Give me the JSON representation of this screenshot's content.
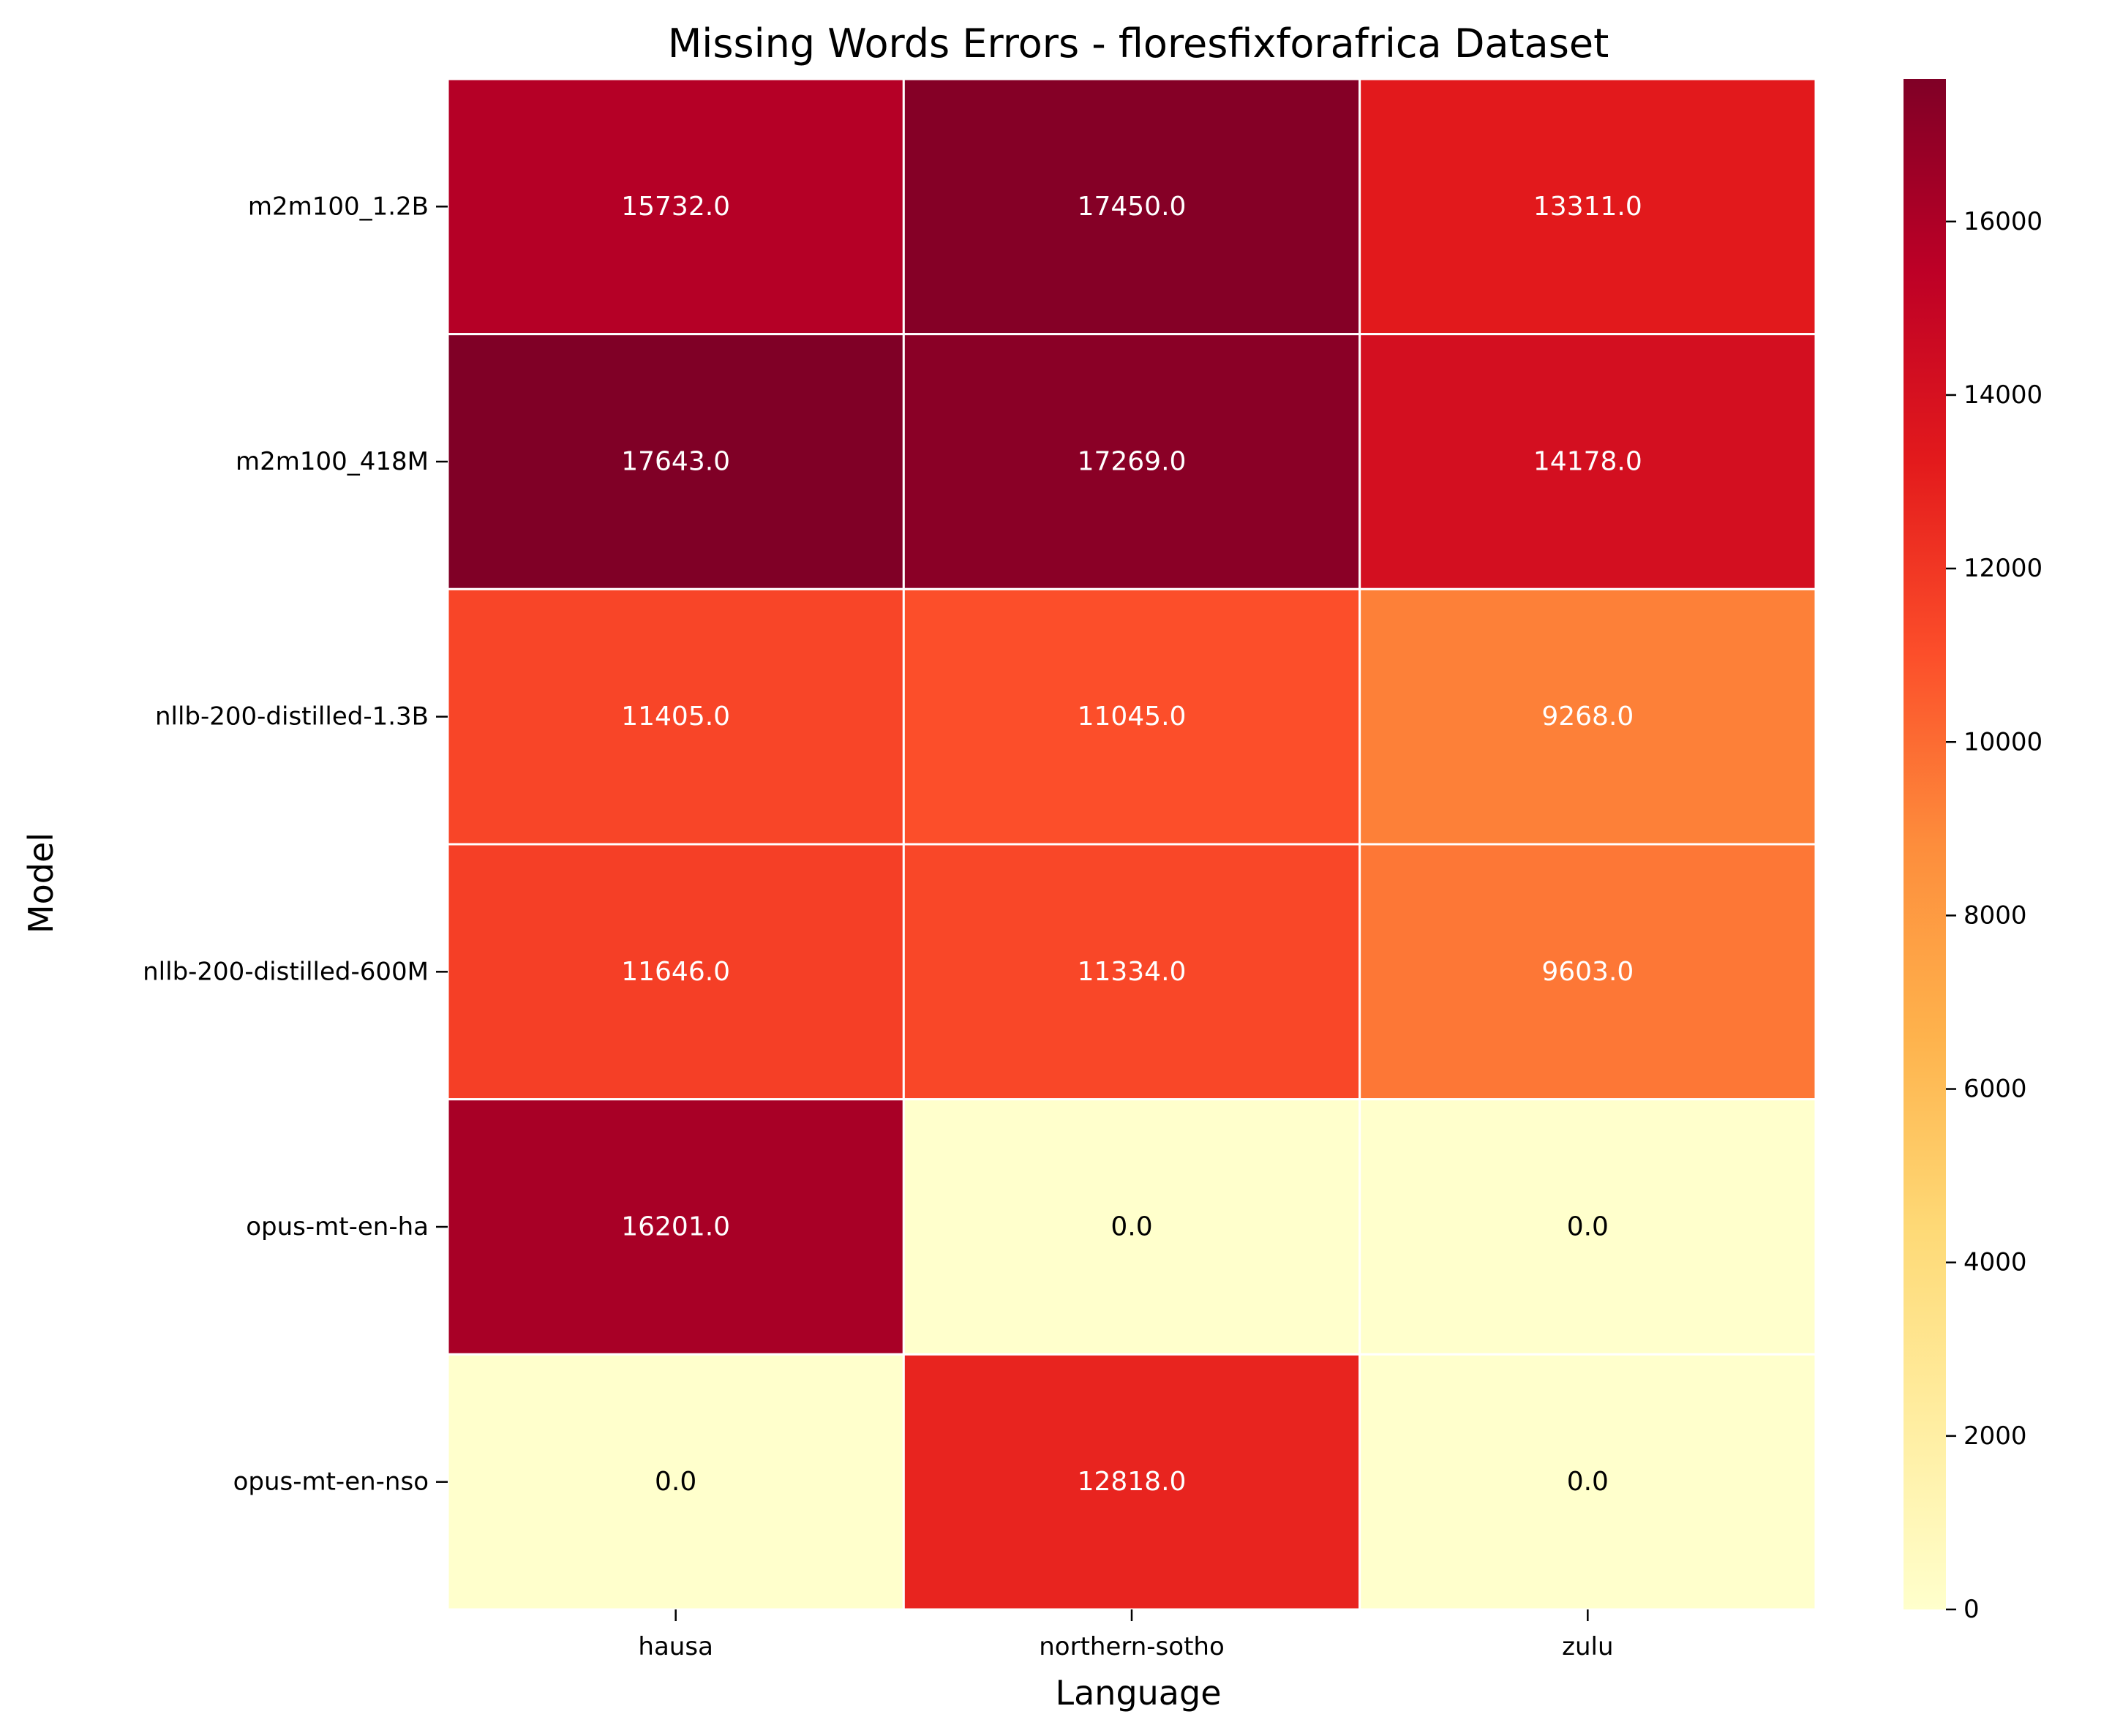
{
  "chart_data": {
    "type": "heatmap",
    "title": "Missing Words Errors - floresfixforafrica Dataset",
    "xlabel": "Language",
    "ylabel": "Model",
    "x_categories": [
      "hausa",
      "northern-sotho",
      "zulu"
    ],
    "y_categories": [
      "m2m100_1.2B",
      "m2m100_418M",
      "nllb-200-distilled-1.3B",
      "nllb-200-distilled-600M",
      "opus-mt-en-ha",
      "opus-mt-en-nso"
    ],
    "values": [
      [
        15732.0,
        17450.0,
        13311.0
      ],
      [
        17643.0,
        17269.0,
        14178.0
      ],
      [
        11405.0,
        11045.0,
        9268.0
      ],
      [
        11646.0,
        11334.0,
        9603.0
      ],
      [
        16201.0,
        0.0,
        0.0
      ],
      [
        0.0,
        12818.0,
        0.0
      ]
    ],
    "value_labels": [
      [
        "15732.0",
        "17450.0",
        "13311.0"
      ],
      [
        "17643.0",
        "17269.0",
        "14178.0"
      ],
      [
        "11405.0",
        "11045.0",
        "9268.0"
      ],
      [
        "11646.0",
        "11334.0",
        "9603.0"
      ],
      [
        "16201.0",
        "0.0",
        "0.0"
      ],
      [
        "0.0",
        "12818.0",
        "0.0"
      ]
    ],
    "colormap": "YlOrRd",
    "color_range": [
      0,
      17643
    ],
    "colorbar_ticks": [
      0,
      2000,
      4000,
      6000,
      8000,
      10000,
      12000,
      14000,
      16000
    ],
    "colorbar_tick_labels": [
      "0",
      "2000",
      "4000",
      "6000",
      "8000",
      "10000",
      "12000",
      "14000",
      "16000"
    ],
    "grid_line_color": "#ffffff"
  }
}
